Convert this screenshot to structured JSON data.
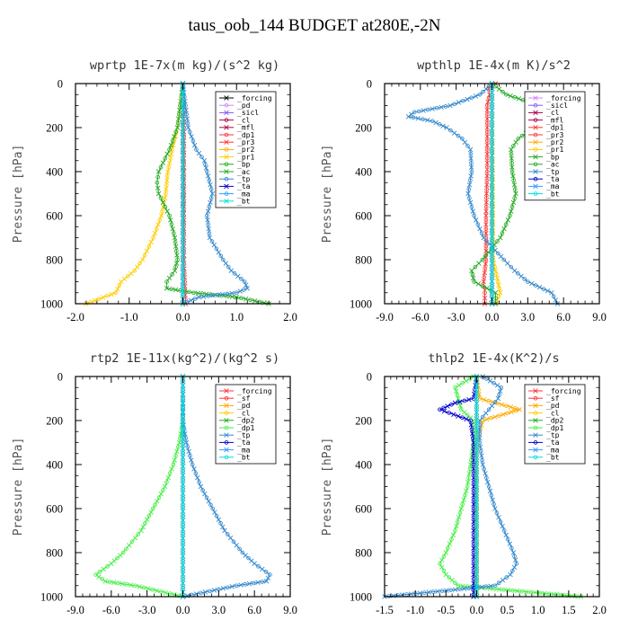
{
  "figure_title": "taus_oob_144  BUDGET at280E,-2N",
  "chart_data": [
    {
      "type": "line",
      "title": "wprtp  1E-7x(m kg)/(s^2 kg)",
      "ylabel": "Pressure [hPa]",
      "xlim": [
        -2.0,
        2.0
      ],
      "ylim": [
        1000,
        0
      ],
      "xticks": [
        "-2.0",
        "-1.0",
        "0.0",
        "1.0",
        "2.0"
      ],
      "xtick_values": [
        -2,
        -1,
        0,
        1,
        2
      ],
      "yticks": [
        "0",
        "200",
        "400",
        "600",
        "800",
        "1000"
      ],
      "ytick_values": [
        0,
        200,
        400,
        600,
        800,
        1000
      ],
      "legend_position": "top-right",
      "series": [
        {
          "name": "_forcing",
          "color": "#000000",
          "p": [
            0,
            1000
          ],
          "x": [
            0,
            0
          ]
        },
        {
          "name": "_pd",
          "color": "#cc88ff",
          "p": [
            0,
            1000
          ],
          "x": [
            0,
            0
          ]
        },
        {
          "name": "_sicl",
          "color": "#8855ff",
          "p": [
            0,
            1000
          ],
          "x": [
            0,
            0
          ]
        },
        {
          "name": "_cl",
          "color": "#aa0044",
          "p": [
            0,
            1000
          ],
          "x": [
            0,
            0
          ]
        },
        {
          "name": "_mfl",
          "color": "#aa0044",
          "p": [
            0,
            1000
          ],
          "x": [
            0,
            0
          ]
        },
        {
          "name": "_dp1",
          "color": "#ff3333",
          "p": [
            0,
            200,
            400,
            600,
            800,
            1000
          ],
          "x": [
            0,
            0.02,
            0.02,
            0.02,
            0.02,
            0.05
          ]
        },
        {
          "name": "_pr3",
          "color": "#ff3333",
          "p": [
            0,
            1000
          ],
          "x": [
            0,
            0
          ]
        },
        {
          "name": "_pr2",
          "color": "#ffaa00",
          "p": [
            0,
            1000
          ],
          "x": [
            0,
            0
          ]
        },
        {
          "name": "_pr1",
          "color": "#ffcc00",
          "p": [
            0,
            100,
            200,
            300,
            400,
            500,
            600,
            700,
            800,
            850,
            900,
            950,
            1000
          ],
          "x": [
            0,
            -0.05,
            -0.1,
            -0.2,
            -0.28,
            -0.32,
            -0.4,
            -0.55,
            -0.75,
            -0.9,
            -1.15,
            -1.25,
            -1.8
          ]
        },
        {
          "name": "_bp",
          "color": "#22aa22",
          "p": [
            0,
            1000
          ],
          "x": [
            0,
            0
          ]
        },
        {
          "name": "_ac",
          "color": "#22aa22",
          "p": [
            0,
            100,
            200,
            300,
            400,
            450,
            500,
            600,
            700,
            800,
            850,
            900,
            930,
            950,
            970,
            1000
          ],
          "x": [
            0,
            -0.05,
            -0.1,
            -0.25,
            -0.45,
            -0.48,
            -0.45,
            -0.25,
            -0.15,
            -0.1,
            -0.15,
            -0.3,
            -0.3,
            0.2,
            1.0,
            1.6
          ]
        },
        {
          "name": "_tp",
          "color": "#3388cc",
          "p": [
            0,
            100,
            200,
            300,
            350,
            400,
            500,
            600,
            700,
            800,
            850,
            900,
            930,
            950,
            970,
            1000
          ],
          "x": [
            0,
            0.05,
            0.1,
            0.25,
            0.4,
            0.45,
            0.55,
            0.45,
            0.5,
            0.75,
            0.9,
            1.15,
            1.2,
            1.0,
            0.3,
            0
          ]
        },
        {
          "name": "_ta",
          "color": "#0000cc",
          "p": [
            0,
            1000
          ],
          "x": [
            0,
            0
          ]
        },
        {
          "name": "_ma",
          "color": "#3399ff",
          "p": [
            0,
            1000
          ],
          "x": [
            0,
            0
          ]
        },
        {
          "name": "_bt",
          "color": "#00dddd",
          "p": [
            0,
            1000
          ],
          "x": [
            0,
            0
          ]
        }
      ]
    },
    {
      "type": "line",
      "title": "wpthlp  1E-4x(m K)/s^2",
      "ylabel": "Pressure [hPa]",
      "xlim": [
        -9.0,
        9.0
      ],
      "ylim": [
        1000,
        0
      ],
      "xticks": [
        "-9.0",
        "-6.0",
        "-3.0",
        "0.0",
        "3.0",
        "6.0",
        "9.0"
      ],
      "xtick_values": [
        -9,
        -6,
        -3,
        0,
        3,
        6,
        9
      ],
      "yticks": [
        "0",
        "200",
        "400",
        "600",
        "800",
        "1000"
      ],
      "ytick_values": [
        0,
        200,
        400,
        600,
        800,
        1000
      ],
      "legend_position": "top-right",
      "series": [
        {
          "name": "_forcing",
          "color": "#cc88ff",
          "p": [
            0,
            1000
          ],
          "x": [
            0,
            0
          ]
        },
        {
          "name": "_sicl",
          "color": "#8855ff",
          "p": [
            0,
            1000
          ],
          "x": [
            0,
            0
          ]
        },
        {
          "name": "_cl",
          "color": "#aa0044",
          "p": [
            0,
            1000
          ],
          "x": [
            0,
            0
          ]
        },
        {
          "name": "_mfl",
          "color": "#aa0044",
          "p": [
            0,
            1000
          ],
          "x": [
            0,
            0
          ]
        },
        {
          "name": "_dp1",
          "color": "#ff3333",
          "p": [
            0,
            20,
            50,
            100,
            200,
            400,
            600,
            800,
            900,
            950,
            1000
          ],
          "x": [
            0.3,
            -0.3,
            -0.2,
            -0.4,
            -0.4,
            -0.4,
            -0.5,
            -0.5,
            -0.7,
            -0.6,
            -0.6
          ]
        },
        {
          "name": "_pr3",
          "color": "#ff3333",
          "p": [
            0,
            1000
          ],
          "x": [
            0,
            0
          ]
        },
        {
          "name": "_pr2",
          "color": "#ffaa00",
          "p": [
            0,
            1000
          ],
          "x": [
            0,
            0
          ]
        },
        {
          "name": "_pr1",
          "color": "#ffcc00",
          "p": [
            0,
            800,
            850,
            900,
            950,
            1000
          ],
          "x": [
            0,
            0.1,
            0.3,
            0.5,
            0.7,
            0.3
          ]
        },
        {
          "name": "_bp",
          "color": "#22aa22",
          "p": [
            0,
            1000
          ],
          "x": [
            0,
            0
          ]
        },
        {
          "name": "_ac",
          "color": "#22aa22",
          "p": [
            0,
            50,
            100,
            130,
            150,
            170,
            200,
            250,
            300,
            400,
            500,
            600,
            700,
            800,
            850,
            900,
            950,
            1000
          ],
          "x": [
            0,
            1.2,
            4.0,
            7.0,
            7.5,
            5.5,
            3.5,
            2.2,
            1.6,
            1.7,
            2.0,
            1.5,
            0.7,
            -0.8,
            -1.7,
            -1.5,
            0.3,
            0.3
          ]
        },
        {
          "name": "_tp",
          "color": "#3388cc",
          "p": [
            0,
            50,
            100,
            130,
            150,
            170,
            200,
            250,
            300,
            400,
            500,
            600,
            700,
            800,
            850,
            900,
            950,
            1000
          ],
          "x": [
            0,
            -1.0,
            -3.5,
            -6.5,
            -7.0,
            -5.0,
            -3.8,
            -2.5,
            -1.8,
            -1.7,
            -2.0,
            -1.5,
            -0.7,
            1.0,
            1.9,
            3.0,
            5.0,
            5.5
          ]
        },
        {
          "name": "_ta",
          "color": "#0000cc",
          "p": [
            0,
            1000
          ],
          "x": [
            0,
            0
          ]
        },
        {
          "name": "_ma",
          "color": "#3399ff",
          "p": [
            0,
            1000
          ],
          "x": [
            0,
            0
          ]
        },
        {
          "name": "_bt",
          "color": "#00dddd",
          "p": [
            0,
            1000
          ],
          "x": [
            0,
            0
          ]
        }
      ]
    },
    {
      "type": "line",
      "title": "rtp2  1E-11x(kg^2)/(kg^2 s)",
      "ylabel": "Pressure [hPa]",
      "xlim": [
        -9.0,
        9.0
      ],
      "ylim": [
        1000,
        0
      ],
      "xticks": [
        "-9.0",
        "-6.0",
        "-3.0",
        "0.0",
        "3.0",
        "6.0",
        "9.0"
      ],
      "xtick_values": [
        -9,
        -6,
        -3,
        0,
        3,
        6,
        9
      ],
      "yticks": [
        "0",
        "200",
        "400",
        "600",
        "800",
        "1000"
      ],
      "ytick_values": [
        0,
        200,
        400,
        600,
        800,
        1000
      ],
      "legend_position": "top-right",
      "series": [
        {
          "name": "_forcing",
          "color": "#ff3333",
          "p": [
            0,
            1000
          ],
          "x": [
            0,
            0
          ]
        },
        {
          "name": "_sf",
          "color": "#ff3333",
          "p": [
            0,
            1000
          ],
          "x": [
            0,
            0
          ]
        },
        {
          "name": "_pd",
          "color": "#ffaa00",
          "p": [
            0,
            1000
          ],
          "x": [
            0,
            0
          ]
        },
        {
          "name": "_cl",
          "color": "#ffcc00",
          "p": [
            0,
            1000
          ],
          "x": [
            0,
            0
          ]
        },
        {
          "name": "_dp2",
          "color": "#22aa22",
          "p": [
            0,
            1000
          ],
          "x": [
            0,
            0
          ]
        },
        {
          "name": "_dp1",
          "color": "#44ee44",
          "p": [
            0,
            200,
            300,
            400,
            500,
            600,
            700,
            800,
            850,
            900,
            930,
            950,
            1000
          ],
          "x": [
            0,
            0,
            -0.3,
            -0.8,
            -1.5,
            -2.5,
            -3.5,
            -5.0,
            -6.0,
            -7.3,
            -6.5,
            -4.0,
            0
          ]
        },
        {
          "name": "_tp",
          "color": "#3388cc",
          "p": [
            0,
            200,
            300,
            400,
            500,
            600,
            700,
            800,
            850,
            900,
            930,
            950,
            1000
          ],
          "x": [
            0,
            0,
            0.3,
            0.8,
            1.5,
            2.5,
            3.5,
            5.0,
            6.0,
            7.3,
            7.0,
            4.5,
            0
          ]
        },
        {
          "name": "_ta",
          "color": "#0000cc",
          "p": [
            0,
            1000
          ],
          "x": [
            0,
            0
          ]
        },
        {
          "name": "_ma",
          "color": "#3399ff",
          "p": [
            0,
            1000
          ],
          "x": [
            0,
            0
          ]
        },
        {
          "name": "_bt",
          "color": "#00dddd",
          "p": [
            0,
            1000
          ],
          "x": [
            0,
            0
          ]
        }
      ]
    },
    {
      "type": "line",
      "title": "thlp2  1E-4x(K^2)/s",
      "ylabel": "Pressure [hPa]",
      "xlim": [
        -1.5,
        2.0
      ],
      "ylim": [
        1000,
        0
      ],
      "xticks": [
        "-1.5",
        "-1.0",
        "-0.5",
        "0.0",
        "0.5",
        "1.0",
        "1.5",
        "2.0"
      ],
      "xtick_values": [
        -1.5,
        -1.0,
        -0.5,
        0,
        0.5,
        1.0,
        1.5,
        2.0
      ],
      "yticks": [
        "0",
        "200",
        "400",
        "600",
        "800",
        "1000"
      ],
      "ytick_values": [
        0,
        200,
        400,
        600,
        800,
        1000
      ],
      "legend_position": "top-right",
      "series": [
        {
          "name": "_forcing",
          "color": "#ff3333",
          "p": [
            0,
            1000
          ],
          "x": [
            0,
            0
          ]
        },
        {
          "name": "_sf",
          "color": "#ff3333",
          "p": [
            0,
            1000
          ],
          "x": [
            0,
            0
          ]
        },
        {
          "name": "_pd",
          "color": "#ffaa00",
          "p": [
            0,
            100,
            150,
            200,
            300,
            1000
          ],
          "x": [
            0,
            0.05,
            0.7,
            0.1,
            0,
            0
          ]
        },
        {
          "name": "_cl",
          "color": "#ffcc00",
          "p": [
            0,
            1000
          ],
          "x": [
            0,
            0
          ]
        },
        {
          "name": "_dp2",
          "color": "#22aa22",
          "p": [
            0,
            1000
          ],
          "x": [
            0,
            0
          ]
        },
        {
          "name": "_dp1",
          "color": "#44ee44",
          "p": [
            0,
            50,
            100,
            150,
            200,
            300,
            400,
            500,
            600,
            700,
            800,
            850,
            900,
            950,
            1000
          ],
          "x": [
            -0.05,
            -0.35,
            -0.3,
            -0.25,
            -0.05,
            -0.05,
            -0.1,
            -0.15,
            -0.25,
            -0.35,
            -0.5,
            -0.6,
            -0.5,
            -0.3,
            1.7
          ]
        },
        {
          "name": "_tp",
          "color": "#3388cc",
          "p": [
            0,
            50,
            100,
            150,
            200,
            300,
            400,
            500,
            600,
            700,
            800,
            850,
            900,
            950,
            1000
          ],
          "x": [
            0.1,
            0.4,
            0.35,
            0.2,
            0.05,
            0.05,
            0.1,
            0.2,
            0.3,
            0.45,
            0.6,
            0.65,
            0.55,
            0.3,
            -1.5
          ]
        },
        {
          "name": "_ta",
          "color": "#0000cc",
          "p": [
            0,
            100,
            120,
            150,
            180,
            200,
            300,
            400,
            500,
            600,
            700,
            800,
            900,
            1000
          ],
          "x": [
            0,
            -0.05,
            -0.35,
            -0.6,
            -0.3,
            -0.1,
            -0.05,
            -0.05,
            -0.05,
            -0.05,
            -0.05,
            -0.05,
            -0.05,
            -0.05
          ]
        },
        {
          "name": "_ma",
          "color": "#3399ff",
          "p": [
            0,
            1000
          ],
          "x": [
            0,
            0
          ]
        },
        {
          "name": "_bt",
          "color": "#00dddd",
          "p": [
            0,
            1000
          ],
          "x": [
            0,
            0
          ]
        }
      ]
    }
  ]
}
